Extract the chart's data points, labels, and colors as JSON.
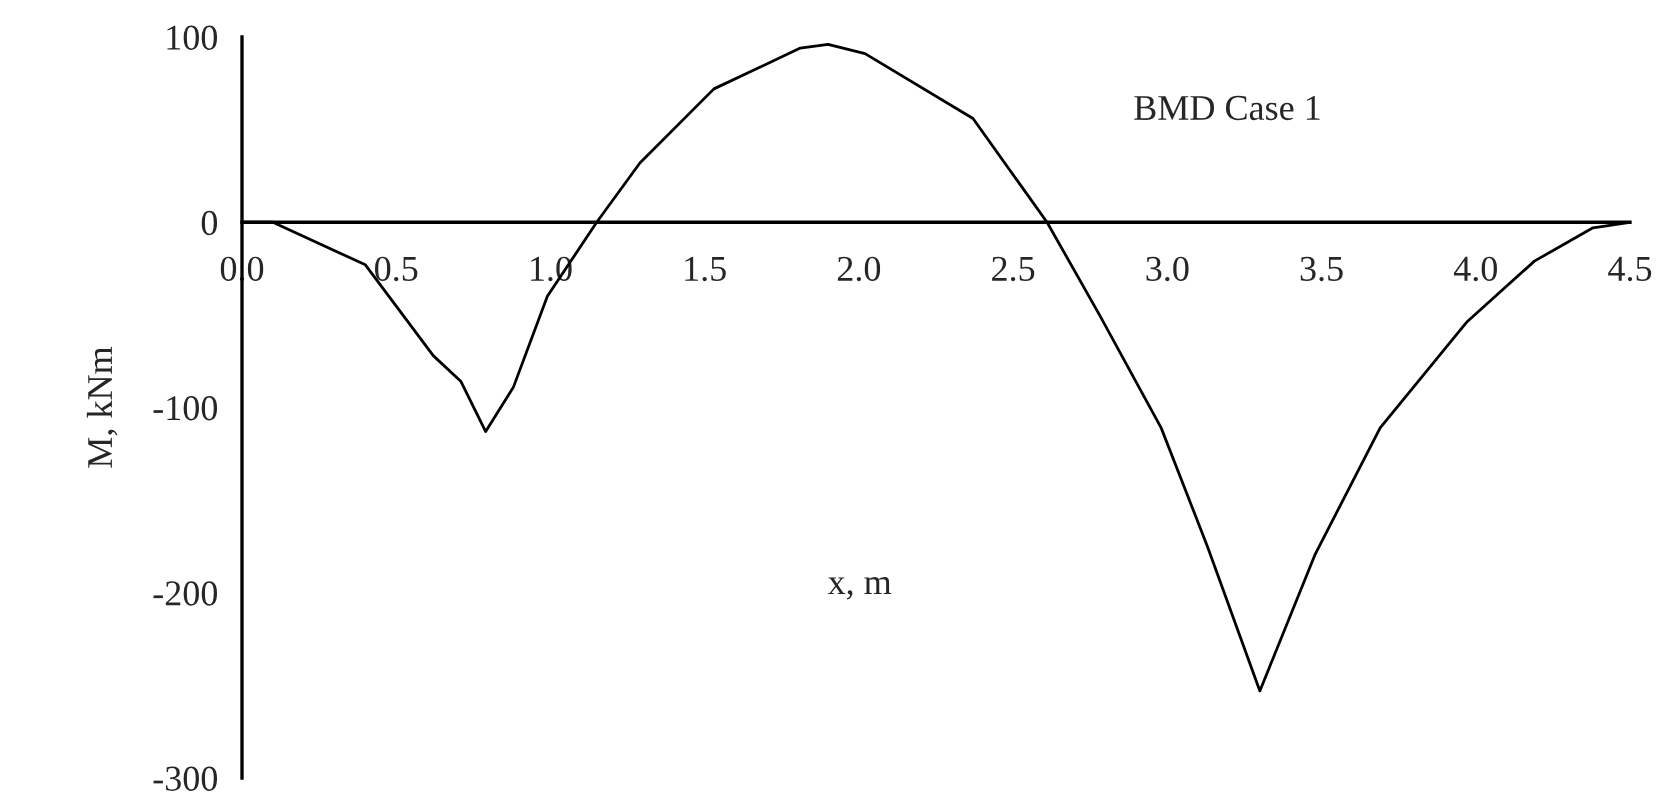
{
  "chart_data": {
    "type": "line",
    "xlabel": "x, m",
    "ylabel": "M, kNm",
    "annotations": [
      "BMD Case 1"
    ],
    "series": [
      {
        "color": "#000000",
        "x": [
          0,
          0.1,
          0.4,
          0.62,
          0.71,
          0.79,
          0.88,
          0.99,
          1.15,
          1.29,
          1.53,
          1.81,
          1.9,
          2.02,
          2.37,
          2.61,
          2.78,
          2.98,
          3.13,
          3.3,
          3.48,
          3.69,
          3.97,
          4.19,
          4.38,
          4.5
        ],
        "values": [
          0,
          0,
          -23,
          -72,
          -86,
          -113,
          -89,
          -40,
          0,
          32,
          72,
          94,
          96,
          91,
          56,
          0,
          -50,
          -111,
          -175,
          -253,
          -179,
          -111,
          -54,
          -21,
          -3,
          0
        ]
      }
    ],
    "xlim": [
      0,
      4.5
    ],
    "xticks": [
      {
        "value": 0,
        "label": "0.0"
      },
      0.5,
      {
        "value": 1,
        "label": "1.0"
      },
      1.5,
      {
        "value": 2,
        "label": "2.0"
      },
      2.5,
      {
        "value": 3,
        "label": "3.0"
      },
      3.5,
      {
        "value": 4,
        "label": "4.0"
      },
      4.5
    ],
    "ylim": [
      -300,
      100
    ],
    "yticks": [
      -300,
      -200,
      -100,
      0,
      100
    ],
    "grid": false,
    "legend": false,
    "marker": "none",
    "line_style": "solid"
  }
}
